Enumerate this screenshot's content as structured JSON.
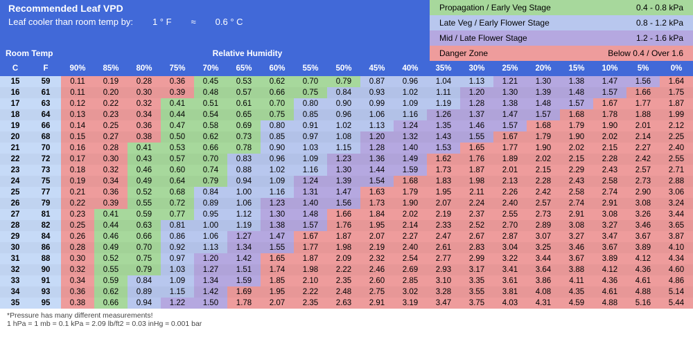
{
  "colors": {
    "header": "#4169d8",
    "temp_col": "#c6daf7",
    "zone_green": "#a7d89c",
    "zone_blue": "#b8c7ee",
    "zone_purple": "#b5a8e0",
    "zone_red": "#ee9c9c",
    "text_white": "#ffffff"
  },
  "title": "Recommended Leaf VPD",
  "subtitle_label": "Leaf cooler than room temp by:",
  "subtitle_f": "1 ° F",
  "subtitle_approx": "≈",
  "subtitle_c": "0.6 ° C",
  "zones": [
    {
      "label": "Propagation / Early Veg Stage",
      "range": "0.4 - 0.8 kPa",
      "color": "#a7d89c"
    },
    {
      "label": "Late Veg / Early Flower Stage",
      "range": "0.8 - 1.2 kPa",
      "color": "#b8c7ee"
    },
    {
      "label": "Mid / Late Flower Stage",
      "range": "1.2 - 1.6 kPa",
      "color": "#b5a8e0"
    },
    {
      "label": "Danger Zone",
      "range": "Below 0.4 / Over 1.6",
      "color": "#ee9c9c"
    }
  ],
  "room_temp_label": "Room Temp",
  "relative_humidity_label": "Relative Humidity",
  "col_c": "C",
  "col_f": "F",
  "humidity_headers": [
    "90%",
    "85%",
    "80%",
    "75%",
    "70%",
    "65%",
    "60%",
    "55%",
    "50%",
    "45%",
    "40%",
    "35%",
    "30%",
    "25%",
    "20%",
    "15%",
    "10%",
    "5%",
    "0%"
  ],
  "rows": [
    {
      "c": "15",
      "f": "59",
      "v": [
        "0.11",
        "0.19",
        "0.28",
        "0.36",
        "0.45",
        "0.53",
        "0.62",
        "0.70",
        "0.79",
        "0.87",
        "0.96",
        "1.04",
        "1.13",
        "1.21",
        "1.30",
        "1.38",
        "1.47",
        "1.56",
        "1.64"
      ]
    },
    {
      "c": "16",
      "f": "61",
      "v": [
        "0.11",
        "0.20",
        "0.30",
        "0.39",
        "0.48",
        "0.57",
        "0.66",
        "0.75",
        "0.84",
        "0.93",
        "1.02",
        "1.11",
        "1.20",
        "1.30",
        "1.39",
        "1.48",
        "1.57",
        "1.66",
        "1.75"
      ]
    },
    {
      "c": "17",
      "f": "63",
      "v": [
        "0.12",
        "0.22",
        "0.32",
        "0.41",
        "0.51",
        "0.61",
        "0.70",
        "0.80",
        "0.90",
        "0.99",
        "1.09",
        "1.19",
        "1.28",
        "1.38",
        "1.48",
        "1.57",
        "1.67",
        "1.77",
        "1.87"
      ]
    },
    {
      "c": "18",
      "f": "64",
      "v": [
        "0.13",
        "0.23",
        "0.34",
        "0.44",
        "0.54",
        "0.65",
        "0.75",
        "0.85",
        "0.96",
        "1.06",
        "1.16",
        "1.26",
        "1.37",
        "1.47",
        "1.57",
        "1.68",
        "1.78",
        "1.88",
        "1.99"
      ]
    },
    {
      "c": "19",
      "f": "66",
      "v": [
        "0.14",
        "0.25",
        "0.36",
        "0.47",
        "0.58",
        "0.69",
        "0.80",
        "0.91",
        "1.02",
        "1.13",
        "1.24",
        "1.35",
        "1.46",
        "1.57",
        "1.68",
        "1.79",
        "1.90",
        "2.01",
        "2.12"
      ]
    },
    {
      "c": "20",
      "f": "68",
      "v": [
        "0.15",
        "0.27",
        "0.38",
        "0.50",
        "0.62",
        "0.73",
        "0.85",
        "0.97",
        "1.08",
        "1.20",
        "1.32",
        "1.43",
        "1.55",
        "1.67",
        "1.79",
        "1.90",
        "2.02",
        "2.14",
        "2.25"
      ]
    },
    {
      "c": "21",
      "f": "70",
      "v": [
        "0.16",
        "0.28",
        "0.41",
        "0.53",
        "0.66",
        "0.78",
        "0.90",
        "1.03",
        "1.15",
        "1.28",
        "1.40",
        "1.53",
        "1.65",
        "1.77",
        "1.90",
        "2.02",
        "2.15",
        "2.27",
        "2.40"
      ]
    },
    {
      "c": "22",
      "f": "72",
      "v": [
        "0.17",
        "0.30",
        "0.43",
        "0.57",
        "0.70",
        "0.83",
        "0.96",
        "1.09",
        "1.23",
        "1.36",
        "1.49",
        "1.62",
        "1.76",
        "1.89",
        "2.02",
        "2.15",
        "2.28",
        "2.42",
        "2.55"
      ]
    },
    {
      "c": "23",
      "f": "73",
      "v": [
        "0.18",
        "0.32",
        "0.46",
        "0.60",
        "0.74",
        "0.88",
        "1.02",
        "1.16",
        "1.30",
        "1.44",
        "1.59",
        "1.73",
        "1.87",
        "2.01",
        "2.15",
        "2.29",
        "2.43",
        "2.57",
        "2.71"
      ]
    },
    {
      "c": "24",
      "f": "75",
      "v": [
        "0.19",
        "0.34",
        "0.49",
        "0.64",
        "0.79",
        "0.94",
        "1.09",
        "1.24",
        "1.39",
        "1.54",
        "1.68",
        "1.83",
        "1.98",
        "2.13",
        "2.28",
        "2.43",
        "2.58",
        "2.73",
        "2.88"
      ]
    },
    {
      "c": "25",
      "f": "77",
      "v": [
        "0.21",
        "0.36",
        "0.52",
        "0.68",
        "0.84",
        "1.00",
        "1.16",
        "1.31",
        "1.47",
        "1.63",
        "1.79",
        "1.95",
        "2.11",
        "2.26",
        "2.42",
        "2.58",
        "2.74",
        "2.90",
        "3.06"
      ]
    },
    {
      "c": "26",
      "f": "79",
      "v": [
        "0.22",
        "0.39",
        "0.55",
        "0.72",
        "0.89",
        "1.06",
        "1.23",
        "1.40",
        "1.56",
        "1.73",
        "1.90",
        "2.07",
        "2.24",
        "2.40",
        "2.57",
        "2.74",
        "2.91",
        "3.08",
        "3.24"
      ]
    },
    {
      "c": "27",
      "f": "81",
      "v": [
        "0.23",
        "0.41",
        "0.59",
        "0.77",
        "0.95",
        "1.12",
        "1.30",
        "1.48",
        "1.66",
        "1.84",
        "2.02",
        "2.19",
        "2.37",
        "2.55",
        "2.73",
        "2.91",
        "3.08",
        "3.26",
        "3.44"
      ]
    },
    {
      "c": "28",
      "f": "82",
      "v": [
        "0.25",
        "0.44",
        "0.63",
        "0.81",
        "1.00",
        "1.19",
        "1.38",
        "1.57",
        "1.76",
        "1.95",
        "2.14",
        "2.33",
        "2.52",
        "2.70",
        "2.89",
        "3.08",
        "3.27",
        "3.46",
        "3.65"
      ]
    },
    {
      "c": "29",
      "f": "84",
      "v": [
        "0.26",
        "0.46",
        "0.66",
        "0.86",
        "1.06",
        "1.27",
        "1.47",
        "1.67",
        "1.87",
        "2.07",
        "2.27",
        "2.47",
        "2.67",
        "2.87",
        "3.07",
        "3.27",
        "3.47",
        "3.67",
        "3.87"
      ]
    },
    {
      "c": "30",
      "f": "86",
      "v": [
        "0.28",
        "0.49",
        "0.70",
        "0.92",
        "1.13",
        "1.34",
        "1.55",
        "1.77",
        "1.98",
        "2.19",
        "2.40",
        "2.61",
        "2.83",
        "3.04",
        "3.25",
        "3.46",
        "3.67",
        "3.89",
        "4.10"
      ]
    },
    {
      "c": "31",
      "f": "88",
      "v": [
        "0.30",
        "0.52",
        "0.75",
        "0.97",
        "1.20",
        "1.42",
        "1.65",
        "1.87",
        "2.09",
        "2.32",
        "2.54",
        "2.77",
        "2.99",
        "3.22",
        "3.44",
        "3.67",
        "3.89",
        "4.12",
        "4.34"
      ]
    },
    {
      "c": "32",
      "f": "90",
      "v": [
        "0.32",
        "0.55",
        "0.79",
        "1.03",
        "1.27",
        "1.51",
        "1.74",
        "1.98",
        "2.22",
        "2.46",
        "2.69",
        "2.93",
        "3.17",
        "3.41",
        "3.64",
        "3.88",
        "4.12",
        "4.36",
        "4.60"
      ]
    },
    {
      "c": "33",
      "f": "91",
      "v": [
        "0.34",
        "0.59",
        "0.84",
        "1.09",
        "1.34",
        "1.59",
        "1.85",
        "2.10",
        "2.35",
        "2.60",
        "2.85",
        "3.10",
        "3.35",
        "3.61",
        "3.86",
        "4.11",
        "4.36",
        "4.61",
        "4.86"
      ]
    },
    {
      "c": "34",
      "f": "93",
      "v": [
        "0.36",
        "0.62",
        "0.89",
        "1.15",
        "1.42",
        "1.69",
        "1.95",
        "2.22",
        "2.48",
        "2.75",
        "3.02",
        "3.28",
        "3.55",
        "3.81",
        "4.08",
        "4.35",
        "4.61",
        "4.88",
        "5.14"
      ]
    },
    {
      "c": "35",
      "f": "95",
      "v": [
        "0.38",
        "0.66",
        "0.94",
        "1.22",
        "1.50",
        "1.78",
        "2.07",
        "2.35",
        "2.63",
        "2.91",
        "3.19",
        "3.47",
        "3.75",
        "4.03",
        "4.31",
        "4.59",
        "4.88",
        "5.16",
        "5.44"
      ]
    }
  ],
  "footnote1": "*Pressure has many different measurements!",
  "footnote2": "1 hPa = 1 mb = 0.1 kPa = 2.09 lb/ft2 = 0.03 inHg ≈ 0.001 bar"
}
